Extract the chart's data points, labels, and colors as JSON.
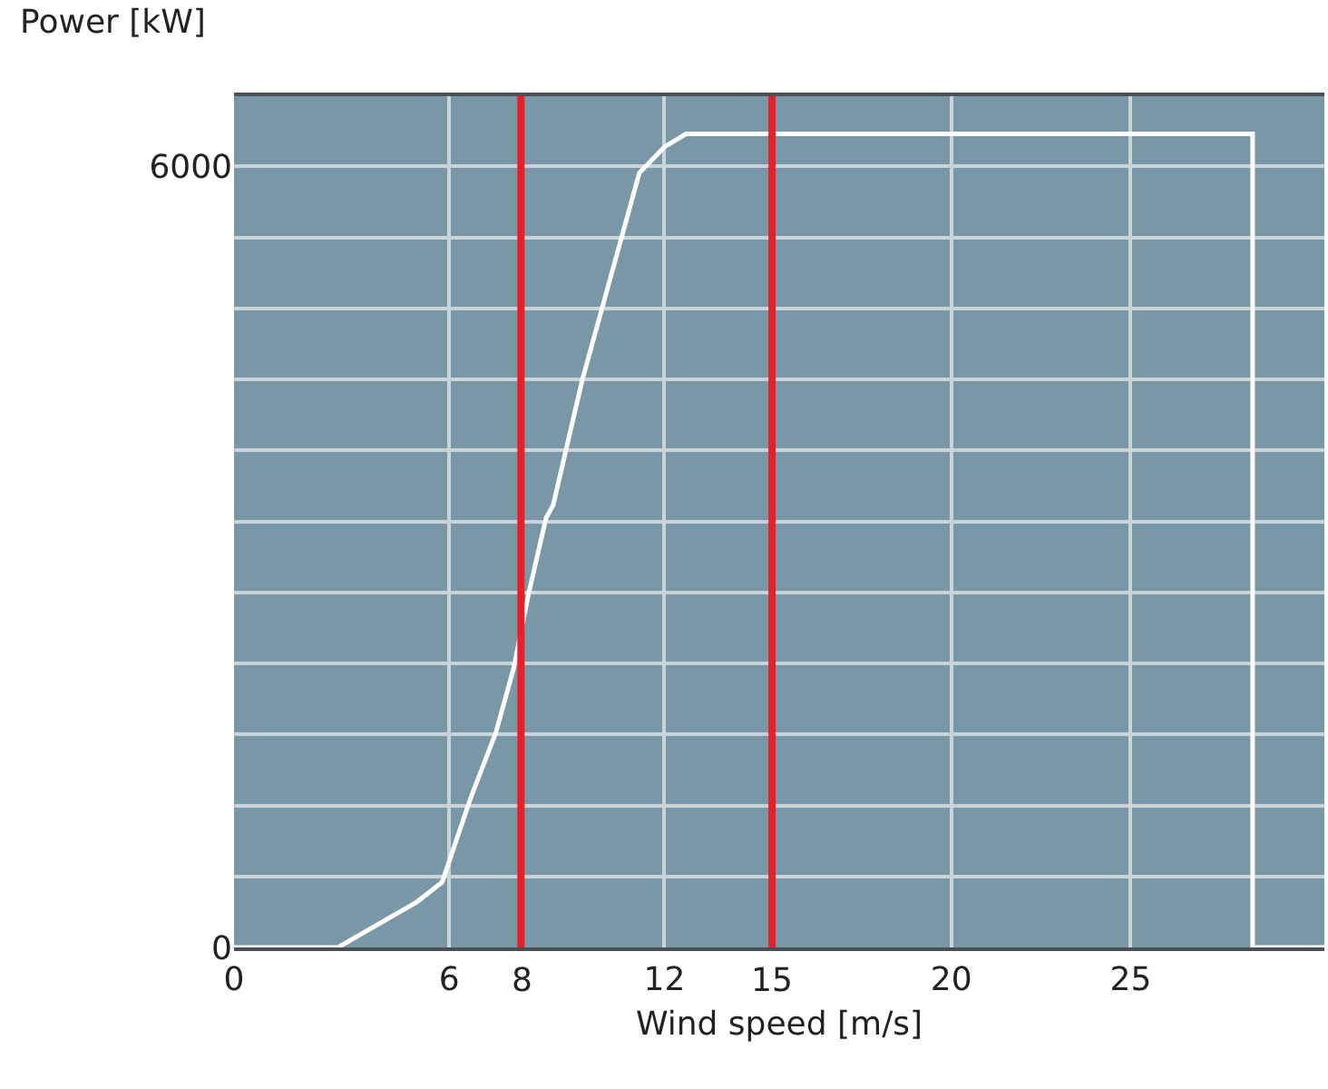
{
  "chart_data": {
    "type": "line",
    "xlabel": "Wind speed [m/s]",
    "ylabel": "Power [kW]",
    "x": [
      0,
      2.9,
      5.1,
      5.8,
      6.6,
      7.3,
      7.8,
      8.2,
      8.7,
      8.9,
      9.7,
      10.7,
      11.3,
      12,
      12.6,
      28.4,
      28.4,
      30.4
    ],
    "series": [
      {
        "color": "#ffffff",
        "values": [
          0,
          0,
          350,
          500,
          1150,
          1650,
          2150,
          2700,
          3300,
          3400,
          4350,
          5350,
          5950,
          6150,
          6250,
          6250,
          0,
          0
        ]
      }
    ],
    "xlim": [
      0,
      30.4
    ],
    "xticks": [
      0,
      6,
      12,
      20,
      25
    ],
    "ylim": [
      0,
      6540
    ],
    "yticks": [
      0,
      {
        "value": 545,
        "label": null
      },
      {
        "value": 1091,
        "label": null
      },
      {
        "value": 1636,
        "label": null
      },
      {
        "value": 2182,
        "label": null
      },
      {
        "value": 2727,
        "label": null
      },
      {
        "value": 3273,
        "label": null
      },
      {
        "value": 3818,
        "label": null
      },
      {
        "value": 4364,
        "label": null
      },
      {
        "value": 4909,
        "label": null
      },
      {
        "value": 5455,
        "label": null
      },
      6000
    ],
    "ref_lines": [
      {
        "axis": "x",
        "value": 8,
        "label": "8",
        "color": "#e8202a"
      },
      {
        "axis": "x",
        "value": 15,
        "label": "15",
        "color": "#e8202a"
      }
    ],
    "grid": true,
    "marker": "none",
    "line_style": "solid"
  }
}
